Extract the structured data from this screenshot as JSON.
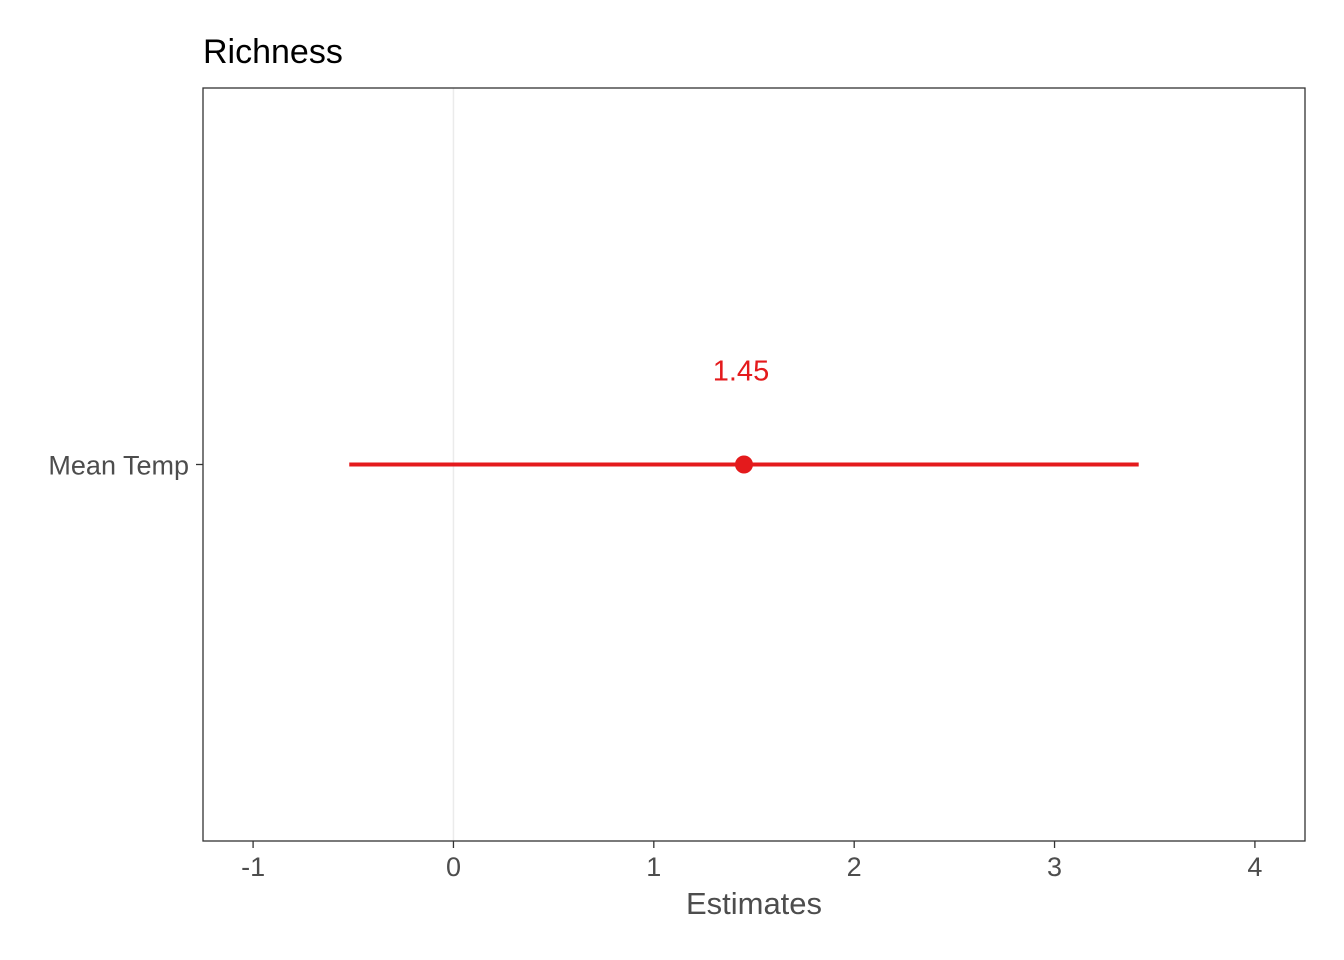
{
  "chart_data": {
    "type": "scatter",
    "title": "Richness",
    "xlabel": "Estimates",
    "ylabel": "",
    "xlim": [
      -1.25,
      4.25
    ],
    "x_ticks": [
      -1,
      0,
      1,
      2,
      3,
      4
    ],
    "x_tick_labels": [
      "-1",
      "0",
      "1",
      "2",
      "3",
      "4"
    ],
    "reference_line_x": 0,
    "grid": false,
    "categories": [
      "Mean Temp"
    ],
    "series": [
      {
        "estimates": [
          1.45
        ],
        "ci_low": [
          -0.52
        ],
        "ci_high": [
          3.42
        ],
        "value_labels": [
          "1.45"
        ],
        "color": "#e41a1c"
      }
    ]
  }
}
